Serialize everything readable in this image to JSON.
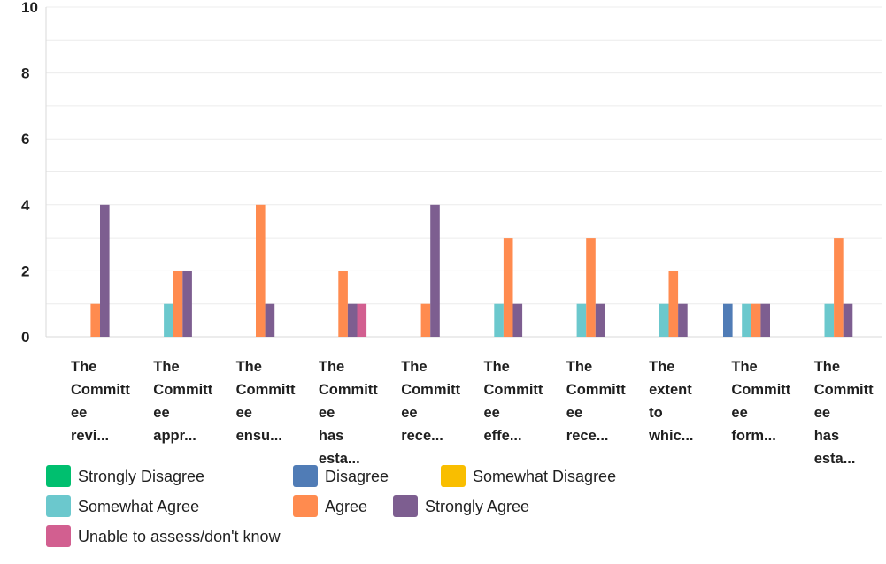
{
  "chart_data": {
    "type": "bar",
    "title": "",
    "xlabel": "",
    "ylabel": "",
    "ylim": [
      0,
      10
    ],
    "yticks": [
      0,
      2,
      4,
      6,
      8,
      10
    ],
    "grid": true,
    "legend_position": "bottom",
    "categories": [
      {
        "id": "q1",
        "lines": [
          "The",
          "Committ",
          "ee",
          "revi..."
        ]
      },
      {
        "id": "q2",
        "lines": [
          "The",
          "Committ",
          "ee",
          "appr..."
        ]
      },
      {
        "id": "q3",
        "lines": [
          "The",
          "Committ",
          "ee",
          "ensu..."
        ]
      },
      {
        "id": "q4",
        "lines": [
          "The",
          "Committ",
          "ee",
          "has",
          "esta..."
        ]
      },
      {
        "id": "q5",
        "lines": [
          "The",
          "Committ",
          "ee",
          "rece..."
        ]
      },
      {
        "id": "q6",
        "lines": [
          "The",
          "Committ",
          "ee",
          "effe..."
        ]
      },
      {
        "id": "q7",
        "lines": [
          "The",
          "Committ",
          "ee",
          "rece..."
        ]
      },
      {
        "id": "q8",
        "lines": [
          "The",
          "extent",
          "to",
          "whic..."
        ]
      },
      {
        "id": "q9",
        "lines": [
          "The",
          "Committ",
          "ee",
          "form..."
        ]
      },
      {
        "id": "q10",
        "lines": [
          "The",
          "Committ",
          "ee",
          "has",
          "esta..."
        ]
      }
    ],
    "series": [
      {
        "name": "Strongly Disagree",
        "color": "#00bf6f",
        "values": [
          0,
          0,
          0,
          0,
          0,
          0,
          0,
          0,
          0,
          0
        ]
      },
      {
        "name": "Disagree",
        "color": "#507cb6",
        "values": [
          0,
          0,
          0,
          0,
          0,
          0,
          0,
          0,
          1,
          0
        ]
      },
      {
        "name": "Somewhat Disagree",
        "color": "#f9be00",
        "values": [
          0,
          0,
          0,
          0,
          0,
          0,
          0,
          0,
          0,
          0
        ]
      },
      {
        "name": "Somewhat Agree",
        "color": "#6bc8cd",
        "values": [
          0,
          1,
          0,
          0,
          0,
          1,
          1,
          1,
          1,
          1
        ]
      },
      {
        "name": "Agree",
        "color": "#ff8b4f",
        "values": [
          1,
          2,
          4,
          2,
          1,
          3,
          3,
          2,
          1,
          3
        ]
      },
      {
        "name": "Strongly Agree",
        "color": "#7d5e90",
        "values": [
          4,
          2,
          1,
          1,
          4,
          1,
          1,
          1,
          1,
          1
        ]
      },
      {
        "name": "Unable to assess/don't know",
        "color": "#d25f90",
        "values": [
          0,
          0,
          0,
          1,
          0,
          0,
          0,
          0,
          0,
          0
        ]
      }
    ]
  }
}
